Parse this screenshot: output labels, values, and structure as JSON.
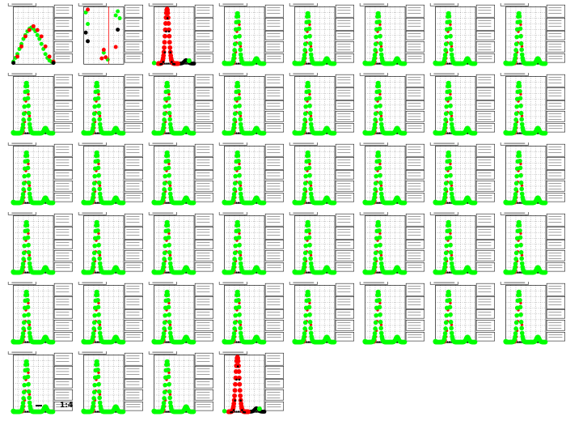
{
  "page": {
    "footer_text": "1:4"
  },
  "colors": {
    "green": "#00ff00",
    "red": "#ff0000",
    "black": "#000000",
    "frame": "#000000",
    "grid": "#000000"
  },
  "chart_data": [
    {
      "type": "scatter",
      "variant": "broad-hump",
      "series": [
        {
          "color": "#00ff00",
          "x": [
            0,
            1,
            2,
            3,
            4,
            5,
            6,
            7,
            8,
            9,
            10,
            11,
            12,
            13,
            14,
            15,
            16,
            17,
            18,
            19,
            20
          ],
          "y": [
            2,
            5,
            8,
            12,
            16,
            20,
            23,
            26,
            28,
            29,
            28,
            26,
            23,
            20,
            16,
            12,
            8,
            5,
            3,
            2,
            1
          ]
        },
        {
          "color": "#ff0000",
          "x": [
            2,
            4,
            6,
            8,
            10,
            12,
            14,
            16,
            18,
            20
          ],
          "y": [
            6,
            14,
            22,
            27,
            30,
            27,
            22,
            14,
            6,
            2
          ]
        },
        {
          "color": "#000000",
          "x": [
            0,
            20
          ],
          "y": [
            1,
            1
          ]
        }
      ]
    },
    {
      "type": "scatter",
      "variant": "sparse",
      "series": [
        {
          "color": "#00ff00",
          "x": [
            1,
            2,
            10,
            12,
            16,
            17,
            18
          ],
          "y": [
            90,
            70,
            20,
            8,
            85,
            92,
            80
          ]
        },
        {
          "color": "#ff0000",
          "x": [
            2,
            9,
            10,
            11,
            16
          ],
          "y": [
            95,
            10,
            25,
            12,
            30
          ]
        },
        {
          "color": "#000000",
          "x": [
            1,
            2,
            17
          ],
          "y": [
            55,
            40,
            60
          ]
        }
      ]
    },
    {
      "type": "scatter",
      "variant": "red-peak"
    },
    {
      "type": "scatter",
      "variant": "peak"
    },
    {
      "type": "scatter",
      "variant": "peak"
    },
    {
      "type": "scatter",
      "variant": "peak"
    },
    {
      "type": "scatter",
      "variant": "peak"
    },
    {
      "type": "scatter",
      "variant": "peak"
    },
    {
      "type": "scatter",
      "variant": "peak"
    },
    {
      "type": "scatter",
      "variant": "peak"
    },
    {
      "type": "scatter",
      "variant": "peak"
    },
    {
      "type": "scatter",
      "variant": "peak"
    },
    {
      "type": "scatter",
      "variant": "peak"
    },
    {
      "type": "scatter",
      "variant": "peak"
    },
    {
      "type": "scatter",
      "variant": "peak"
    },
    {
      "type": "scatter",
      "variant": "peak"
    },
    {
      "type": "scatter",
      "variant": "peak"
    },
    {
      "type": "scatter",
      "variant": "peak"
    },
    {
      "type": "scatter",
      "variant": "peak"
    },
    {
      "type": "scatter",
      "variant": "peak"
    },
    {
      "type": "scatter",
      "variant": "peak"
    },
    {
      "type": "scatter",
      "variant": "peak"
    },
    {
      "type": "scatter",
      "variant": "peak"
    },
    {
      "type": "scatter",
      "variant": "peak"
    },
    {
      "type": "scatter",
      "variant": "peak"
    },
    {
      "type": "scatter",
      "variant": "peak"
    },
    {
      "type": "scatter",
      "variant": "peak"
    },
    {
      "type": "scatter",
      "variant": "peak"
    },
    {
      "type": "scatter",
      "variant": "peak"
    },
    {
      "type": "scatter",
      "variant": "peak"
    },
    {
      "type": "scatter",
      "variant": "peak"
    },
    {
      "type": "scatter",
      "variant": "peak"
    },
    {
      "type": "scatter",
      "variant": "peak"
    },
    {
      "type": "scatter",
      "variant": "peak"
    },
    {
      "type": "scatter",
      "variant": "peak"
    },
    {
      "type": "scatter",
      "variant": "peak"
    },
    {
      "type": "scatter",
      "variant": "peak"
    },
    {
      "type": "scatter",
      "variant": "peak"
    },
    {
      "type": "scatter",
      "variant": "peak"
    },
    {
      "type": "scatter",
      "variant": "peak"
    },
    {
      "type": "scatter",
      "variant": "peak"
    },
    {
      "type": "scatter",
      "variant": "peak"
    },
    {
      "type": "scatter",
      "variant": "peak"
    },
    {
      "type": "scatter",
      "variant": "red-peak"
    }
  ]
}
